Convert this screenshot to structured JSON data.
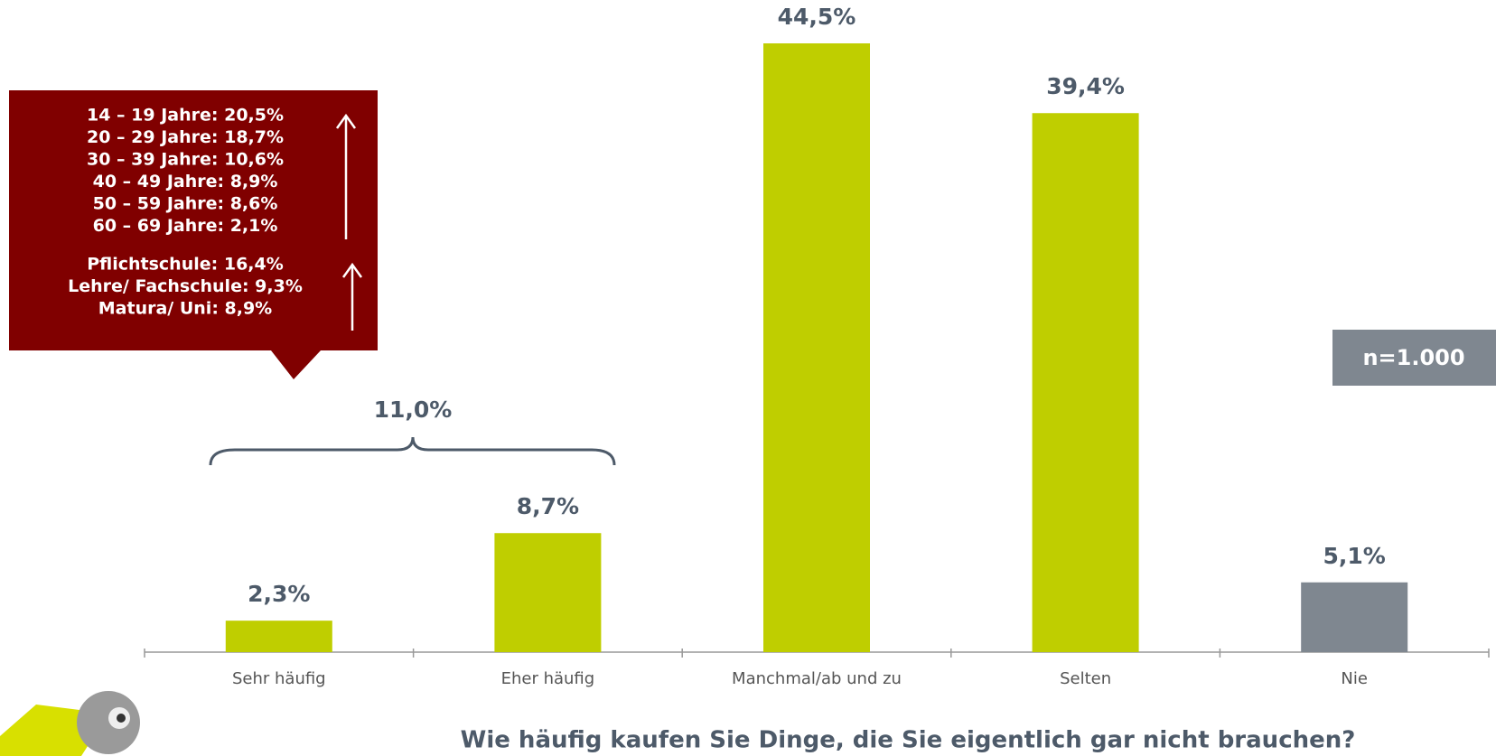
{
  "chart_data": {
    "type": "bar",
    "title": "Wie häufig kaufen Sie Dinge, die Sie eigentlich gar nicht brauchen?",
    "categories": [
      "Sehr häufig",
      "Eher häufig",
      "Manchmal/ab und zu",
      "Selten",
      "Nie"
    ],
    "values": [
      2.3,
      8.7,
      44.5,
      39.4,
      5.1
    ],
    "value_labels": [
      "2,3%",
      "8,7%",
      "44,5%",
      "39,4%",
      "5,1%"
    ],
    "colors": [
      "#bfce00",
      "#bfce00",
      "#bfce00",
      "#bfce00",
      "#7f8790"
    ],
    "bracket_label": "11,0%",
    "sample_note": "n=1.000",
    "callout": [
      [
        "14 – 19 Jahre: 20,5%",
        "20 – 29 Jahre: 18,7%",
        "30 – 39 Jahre: 10,6%",
        "40 – 49 Jahre: 8,9%",
        "50 – 59 Jahre: 8,6%",
        "60 – 69 Jahre: 2,1%"
      ],
      [
        "Pflichtschule: 16,4%",
        "Lehre/ Fachschule: 9,3%",
        "Matura/ Uni: 8,9%"
      ]
    ]
  }
}
